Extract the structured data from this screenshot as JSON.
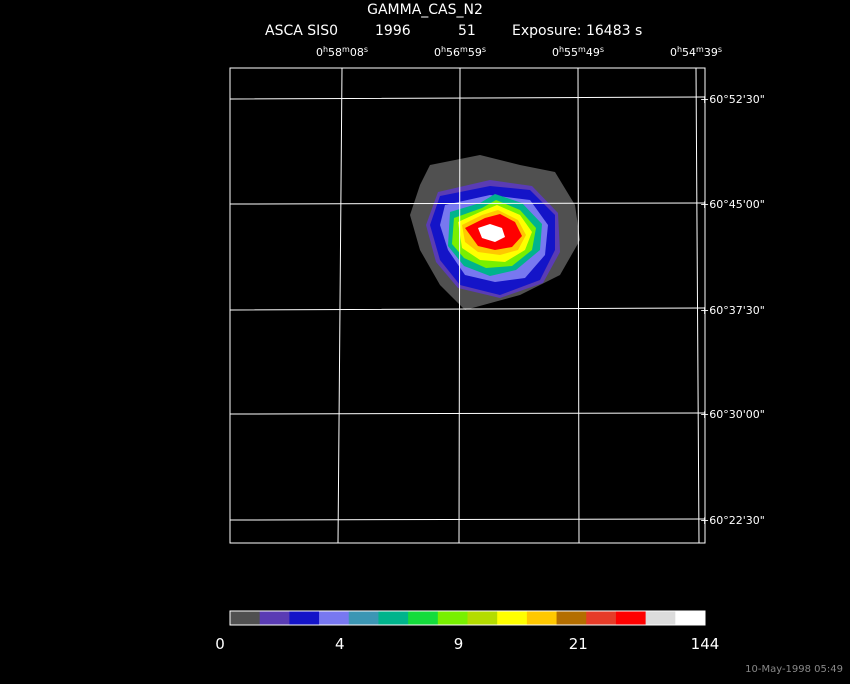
{
  "header": {
    "title": "GAMMA_CAS_N2",
    "instrument": "ASCA SIS0",
    "year": "1996",
    "number": "51",
    "exposure": "Exposure: 16483 s"
  },
  "ra_labels": [
    "0h58m08s",
    "0h56m59s",
    "0h55m49s",
    "0h54m39s"
  ],
  "dec_labels": [
    "+60°52'30\"",
    "+60°45'00\"",
    "+60°37'30\"",
    "+60°30'00\"",
    "+60°22'30\""
  ],
  "colorbar": {
    "colors": [
      "#505050",
      "#5a3cb4",
      "#1414c8",
      "#7878f0",
      "#3c96b4",
      "#00b48c",
      "#14dc3c",
      "#78f000",
      "#b4dc00",
      "#ffff00",
      "#ffc800",
      "#b46e00",
      "#e63c28",
      "#ff0000",
      "#dcdcdc",
      "#ffffff"
    ],
    "ticks": [
      0,
      4,
      9,
      21,
      144
    ]
  },
  "timestamp": "10-May-1998 05:49"
}
